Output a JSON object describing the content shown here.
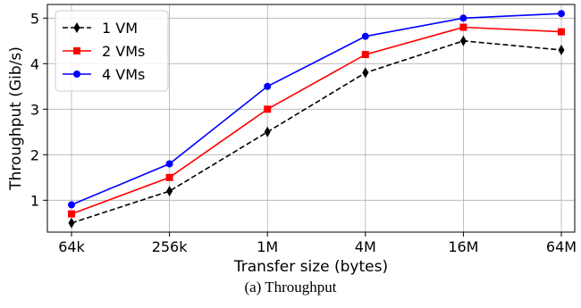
{
  "chart_data": {
    "type": "line",
    "xlabel": "Transfer size (bytes)",
    "ylabel": "Throughput (Gib/s)",
    "categories": [
      "64k",
      "256k",
      "1M",
      "4M",
      "16M",
      "64M"
    ],
    "yticks": [
      1,
      2,
      3,
      4,
      5
    ],
    "ylim": [
      0.3,
      5.3
    ],
    "grid": true,
    "legend_position": "top-left",
    "series": [
      {
        "name": "1 VM",
        "values": [
          0.5,
          1.2,
          2.5,
          3.8,
          4.5,
          4.3
        ],
        "color": "#000000",
        "marker": "diamond",
        "line_style": "dashed"
      },
      {
        "name": "2 VMs",
        "values": [
          0.7,
          1.5,
          3.0,
          4.2,
          4.8,
          4.7
        ],
        "color": "#ff0000",
        "marker": "square",
        "line_style": "solid"
      },
      {
        "name": "4 VMs",
        "values": [
          0.9,
          1.8,
          3.5,
          4.6,
          5.0,
          5.1
        ],
        "color": "#0000ff",
        "marker": "circle",
        "line_style": "solid"
      }
    ]
  },
  "caption": "(a) Throughput"
}
